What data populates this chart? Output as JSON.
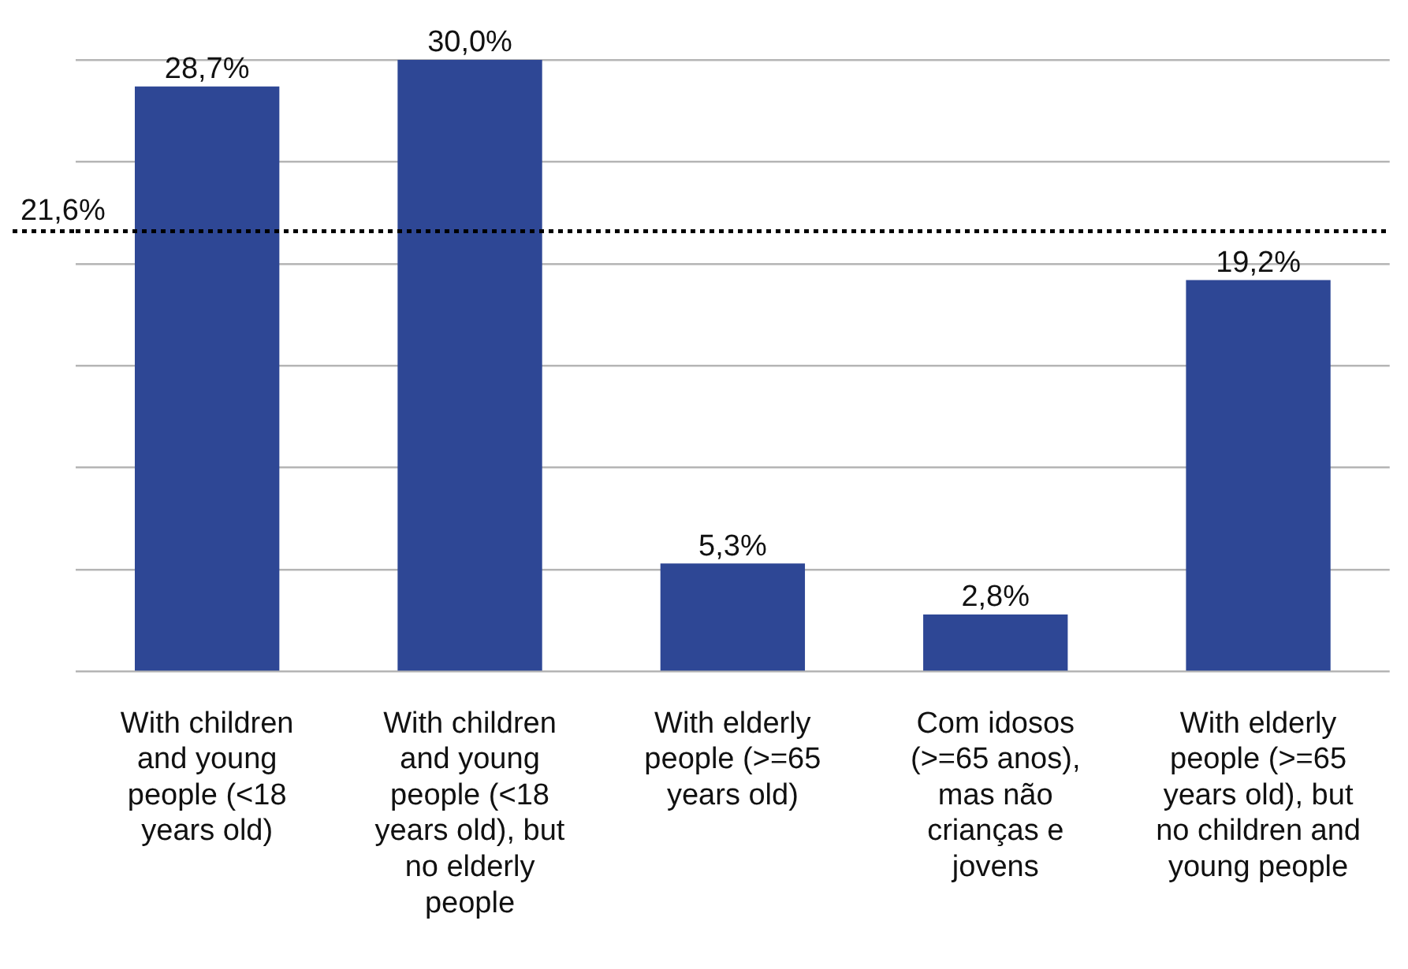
{
  "chart_data": {
    "type": "bar",
    "categories": [
      "With children and young people (<18 years old)",
      "With children and young people (<18 years old), but no elderly people",
      "With elderly people (>=65 years old)",
      "Com idosos (>=65 anos), mas não crianças e jovens",
      "With elderly people (>=65 years old), but no children and young people"
    ],
    "values": [
      28.7,
      30.0,
      5.3,
      2.8,
      19.2
    ],
    "value_labels": [
      "28,7%",
      "30,0%",
      "5,3%",
      "2,8%",
      "19,2%"
    ],
    "color": "#2e4795",
    "ylim": [
      0,
      30
    ],
    "yticks": [
      {
        "value": 0,
        "label": null
      },
      {
        "value": 5,
        "label": null
      },
      {
        "value": 10,
        "label": null
      },
      {
        "value": 15,
        "label": null
      },
      {
        "value": 20,
        "label": null
      },
      {
        "value": 25,
        "label": null
      },
      {
        "value": 30,
        "label": null
      }
    ],
    "tick_labels": "x",
    "grid": "y",
    "ref_lines": [
      {
        "axis": "y",
        "value": 21.6,
        "label": "21,6%",
        "color": "#000000",
        "line_style": "dotted"
      }
    ]
  }
}
